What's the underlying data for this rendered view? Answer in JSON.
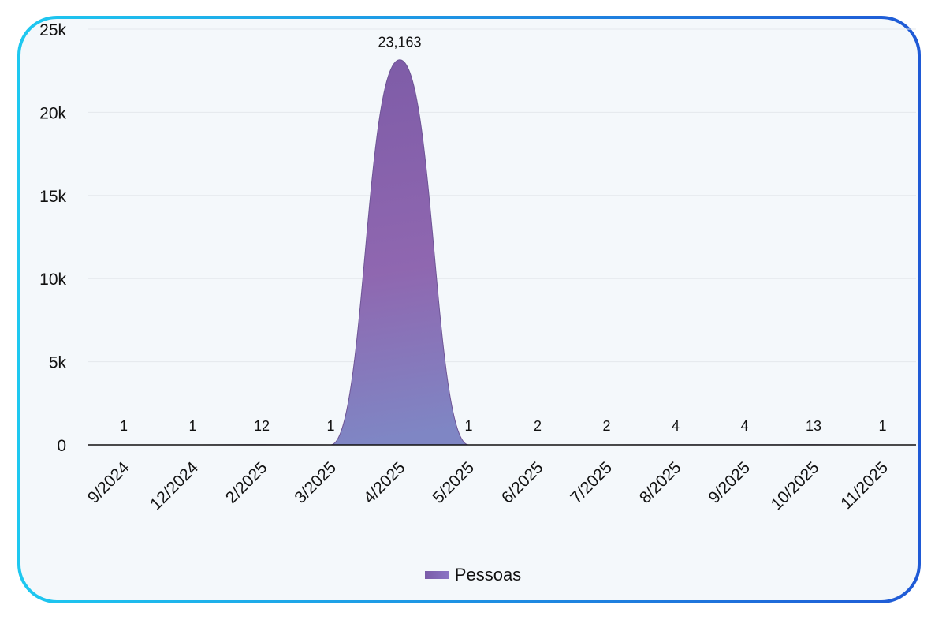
{
  "chart_data": {
    "type": "area",
    "categories": [
      "9/2024",
      "12/2024",
      "2/2025",
      "3/2025",
      "4/2025",
      "5/2025",
      "6/2025",
      "7/2025",
      "8/2025",
      "9/2025",
      "10/2025",
      "11/2025"
    ],
    "series": [
      {
        "name": "Pessoas",
        "values": [
          1,
          1,
          12,
          1,
          23163,
          1,
          2,
          2,
          4,
          4,
          13,
          1
        ]
      }
    ],
    "data_labels": [
      "1",
      "1",
      "12",
      "1",
      "23,163",
      "1",
      "2",
      "2",
      "4",
      "4",
      "13",
      "1"
    ],
    "y_ticks": [
      0,
      5000,
      10000,
      15000,
      20000,
      25000
    ],
    "y_tick_labels": [
      "0",
      "5k",
      "10k",
      "15k",
      "20k",
      "25k"
    ],
    "ylim": [
      0,
      25000
    ],
    "grid": true,
    "legend_position": "bottom-center",
    "colors": {
      "area_top": "#7b5aa6",
      "area_mid": "#8f67b0",
      "area_bottom": "#7f86c4",
      "border_start": "#1ec8f0",
      "border_end": "#1f5ad6",
      "panel_bg": "#f4f8fb",
      "gridline": "#e4e8ec"
    }
  },
  "legend": {
    "label": "Pessoas"
  }
}
